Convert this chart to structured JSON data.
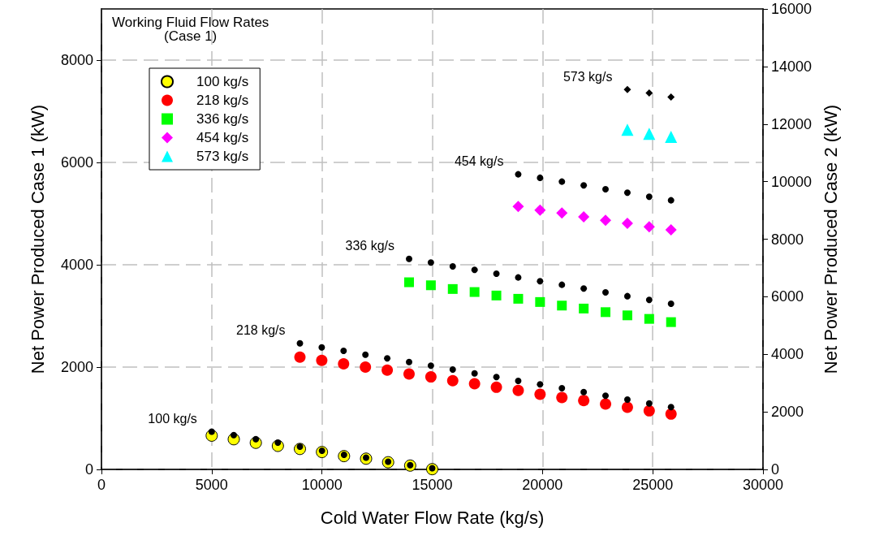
{
  "chart_data": {
    "type": "scatter",
    "legend_title": "Working Fluid Flow Rates\n(Case 1)",
    "xlabel": "Cold Water Flow Rate (kg/s)",
    "ylabel": "Net Power Produced Case 1 (kW)",
    "y2label": "Net Power Produced Case 2 (kW)",
    "xlim": [
      0,
      30000
    ],
    "xticks": [
      0,
      5000,
      10000,
      15000,
      20000,
      25000,
      30000
    ],
    "ylim": [
      0,
      9000
    ],
    "yticks": [
      0,
      2000,
      4000,
      6000,
      8000
    ],
    "y2lim": [
      0,
      16000
    ],
    "y2ticks": [
      0,
      2000,
      4000,
      6000,
      8000,
      10000,
      12000,
      14000,
      16000
    ],
    "grid": true,
    "legend": "top left",
    "series": [
      {
        "name": "100 kg/s",
        "color": "#ffff00",
        "marker": "circle",
        "x": [
          5000,
          6000,
          7000,
          8000,
          9000,
          10000,
          11000,
          12000,
          13000,
          14000,
          15000
        ],
        "values": [
          660,
          590,
          520,
          460,
          400,
          340,
          260,
          210,
          140,
          75,
          5
        ]
      },
      {
        "name": "218 kg/s",
        "color": "#ff0000",
        "marker": "circle",
        "x": [
          9000,
          9990,
          10980,
          11970,
          12960,
          13950,
          14940,
          15930,
          16920,
          17910,
          18900,
          19890,
          20880,
          21870,
          22860,
          23850,
          24840,
          25830
        ],
        "values": [
          2195,
          2131,
          2063,
          1999,
          1940,
          1865,
          1808,
          1734,
          1675,
          1606,
          1543,
          1468,
          1404,
          1347,
          1277,
          1214,
          1145,
          1082
        ]
      },
      {
        "name": "336 kg/s",
        "color": "#00ff00",
        "marker": "square",
        "x": [
          13950,
          14940,
          15930,
          16920,
          17910,
          18900,
          19890,
          20880,
          21870,
          22860,
          23850,
          24840,
          25830
        ],
        "values": [
          3658,
          3599,
          3526,
          3467,
          3399,
          3335,
          3272,
          3202,
          3144,
          3074,
          3011,
          2942,
          2879
        ]
      },
      {
        "name": "454 kg/s",
        "color": "#ff00ff",
        "marker": "diamond",
        "x": [
          18900,
          19890,
          20880,
          21870,
          22860,
          23850,
          24840,
          25830
        ],
        "values": [
          5137,
          5069,
          5010,
          4935,
          4871,
          4808,
          4744,
          4681
        ]
      },
      {
        "name": "573 kg/s",
        "color": "#00ffff",
        "marker": "triangle",
        "x": [
          23850,
          24840,
          25830
        ],
        "values": [
          6640,
          6560,
          6500
        ]
      },
      {
        "name": "100 kg/s",
        "color": "#000000",
        "marker": "circle",
        "axis": "y2",
        "x": [
          5000,
          6000,
          7000,
          8000,
          9000,
          10000,
          11000,
          12000,
          13000,
          14000,
          15000
        ],
        "values": [
          1310,
          1190,
          1050,
          930,
          790,
          650,
          510,
          410,
          270,
          150,
          40
        ]
      },
      {
        "name": "218 kg/s",
        "color": "#000000",
        "marker": "circle",
        "axis": "y2",
        "x": [
          9000,
          9990,
          10980,
          11970,
          12960,
          13950,
          14940,
          15930,
          16920,
          17910,
          18900,
          19890,
          20880,
          21870,
          22860,
          23850,
          24840,
          25830
        ],
        "values": [
          4383,
          4242,
          4121,
          3988,
          3858,
          3734,
          3604,
          3472,
          3339,
          3209,
          3076,
          2955,
          2822,
          2690,
          2560,
          2427,
          2295,
          2165
        ]
      },
      {
        "name": "336 kg/s",
        "color": "#000000",
        "marker": "circle",
        "axis": "y2",
        "x": [
          13950,
          14940,
          15930,
          16920,
          17910,
          18900,
          19890,
          20880,
          21870,
          22860,
          23850,
          24840,
          25830
        ],
        "values": [
          7318,
          7188,
          7056,
          6935,
          6802,
          6670,
          6540,
          6416,
          6286,
          6153,
          6020,
          5890,
          5758
        ]
      },
      {
        "name": "454 kg/s",
        "color": "#000000",
        "marker": "circle",
        "axis": "y2",
        "x": [
          18900,
          19890,
          20880,
          21870,
          22860,
          23850,
          24840,
          25830
        ],
        "values": [
          10254,
          10133,
          10000,
          9870,
          9737,
          9616,
          9475,
          9351
        ]
      },
      {
        "name": "573 kg/s",
        "color": "#000000",
        "marker": "diamond",
        "axis": "y2",
        "x": [
          23850,
          24840,
          25830
        ],
        "values": [
          13200,
          13077,
          12935
        ]
      }
    ]
  }
}
